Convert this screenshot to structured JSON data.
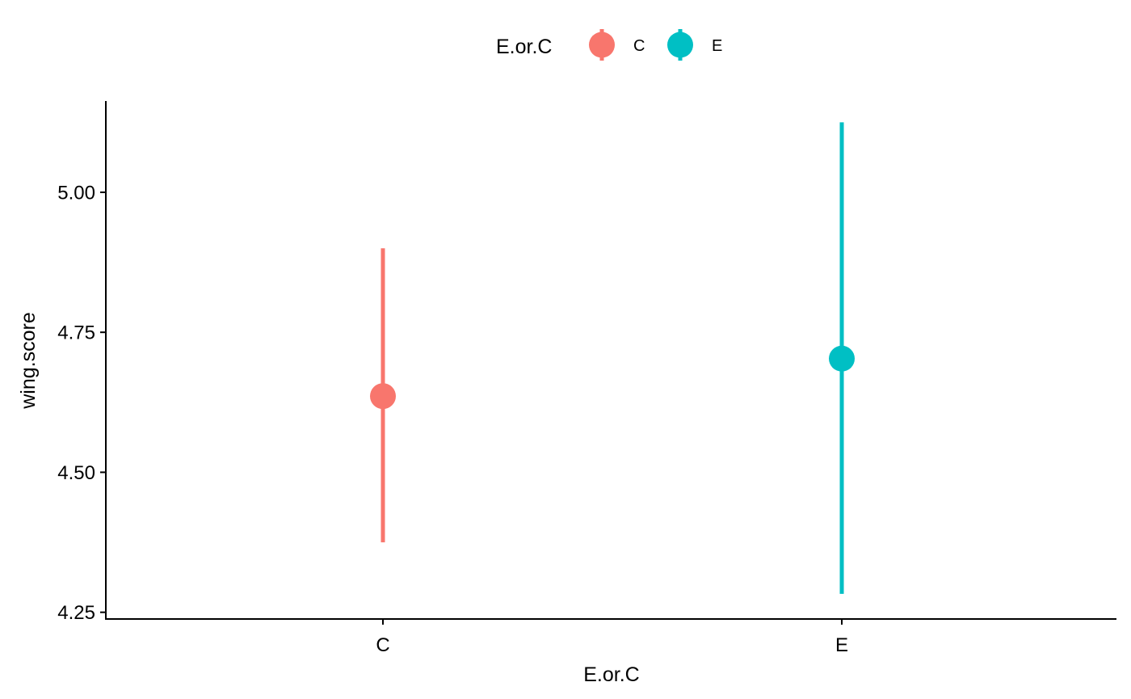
{
  "chart_data": {
    "type": "scatter",
    "title": "",
    "xlabel": "E.or.C",
    "ylabel": "wing.score",
    "categories": [
      "C",
      "E"
    ],
    "y_ticks": [
      "4.25",
      "4.50",
      "4.75",
      "5.00"
    ],
    "ylim": [
      4.238,
      5.163
    ],
    "grid": false,
    "legend": {
      "title": "E.or.C",
      "position": "top",
      "entries": [
        "C",
        "E"
      ]
    },
    "series": [
      {
        "name": "C",
        "category": "C",
        "mean": 4.636,
        "lower": 4.375,
        "upper": 4.9,
        "color": "#F8766D"
      },
      {
        "name": "E",
        "category": "E",
        "mean": 4.703,
        "lower": 4.283,
        "upper": 5.125,
        "color": "#00BFC4"
      }
    ]
  }
}
